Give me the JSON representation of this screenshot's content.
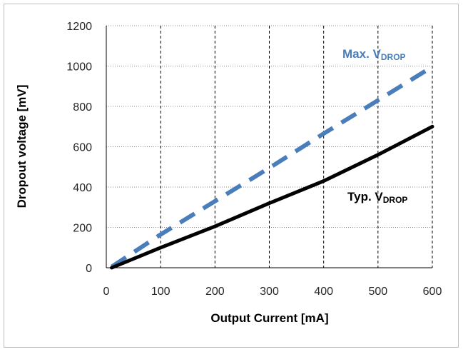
{
  "chart_data": {
    "type": "line",
    "xlabel": "Output Current [mA]",
    "ylabel": "Dropout voltage [mV]",
    "xlim": [
      0,
      600
    ],
    "ylim": [
      0,
      1200
    ],
    "x_ticks": [
      0,
      100,
      200,
      300,
      400,
      500,
      600
    ],
    "y_ticks": [
      0,
      200,
      400,
      600,
      800,
      1000,
      1200
    ],
    "grid": "vertical dashed, horizontal dotted",
    "series": [
      {
        "name": "Max. VDROP",
        "label_main": "Max. V",
        "label_sub": "DROP",
        "color": "#4a7ebb",
        "style": "dashed",
        "x": [
          10,
          100,
          200,
          300,
          400,
          500,
          590
        ],
        "y": [
          5,
          165,
          330,
          495,
          665,
          830,
          980
        ]
      },
      {
        "name": "Typ. VDROP",
        "label_main": "Typ. V",
        "label_sub": "DROP",
        "color": "#000000",
        "style": "solid",
        "x": [
          10,
          100,
          200,
          300,
          400,
          500,
          600
        ],
        "y": [
          0,
          100,
          205,
          320,
          430,
          560,
          700
        ]
      }
    ]
  }
}
